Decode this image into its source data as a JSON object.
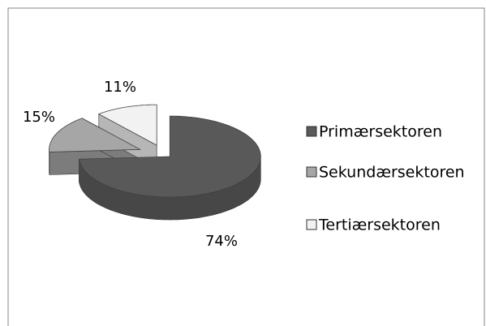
{
  "chart_data": {
    "type": "pie",
    "categories": [
      "Primærsektoren",
      "Sekundærsektoren",
      "Tertiærsektoren"
    ],
    "values": [
      74,
      15,
      11
    ],
    "value_labels": [
      "74%",
      "15%",
      "11%"
    ],
    "colors": [
      "#595959",
      "#a6a6a6",
      "#f2f2f2"
    ]
  }
}
